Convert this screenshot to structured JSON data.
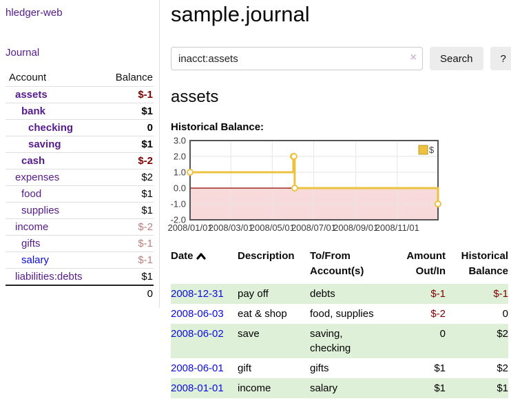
{
  "colors": {
    "link_purple": "#551a8b",
    "link_blue": "#0b0bdc",
    "negative_red": "#800000",
    "muted_negative_rose": "#bc7e7e",
    "row_stripe_green": "#dff0d8",
    "chart_line_gold": "#edc240",
    "chart_negative_fill": "#f9dada",
    "chart_zero_line": "#8b0000",
    "button_gray": "#ececec"
  },
  "sidebar": {
    "app_title": "hledger-web",
    "journal_label": "Journal",
    "accounts_header": {
      "account": "Account",
      "balance": "Balance"
    },
    "accounts": [
      {
        "name": "assets",
        "balance": "$-1"
      },
      {
        "name": "bank",
        "balance": "$1"
      },
      {
        "name": "checking",
        "balance": "0"
      },
      {
        "name": "saving",
        "balance": "$1"
      },
      {
        "name": "cash",
        "balance": "$-2"
      },
      {
        "name": "expenses",
        "balance": "$2"
      },
      {
        "name": "food",
        "balance": "$1"
      },
      {
        "name": "supplies",
        "balance": "$1"
      },
      {
        "name": "income",
        "balance": "$-2"
      },
      {
        "name": "gifts",
        "balance": "$-1"
      },
      {
        "name": "salary",
        "balance": "$-1"
      },
      {
        "name": "liabilities:debts",
        "balance": "$1"
      }
    ],
    "total": "0"
  },
  "main": {
    "title": "sample.journal",
    "search": {
      "value": "inacct:assets",
      "clear_icon": "×",
      "button": "Search",
      "help_button": "?"
    },
    "account_heading": "assets",
    "chart_label": "Historical Balance:"
  },
  "chart_data": {
    "type": "line",
    "title": "Historical Balance",
    "series": [
      {
        "name": "$",
        "color": "#edc240",
        "style": "steps",
        "points_day_value": [
          [
            0,
            1
          ],
          [
            152,
            2
          ],
          [
            153,
            2
          ],
          [
            154,
            0
          ],
          [
            365,
            -1
          ]
        ],
        "points_date_value": [
          [
            "2008-01-01",
            1
          ],
          [
            "2008-06-01",
            2
          ],
          [
            "2008-06-02",
            2
          ],
          [
            "2008-06-03",
            0
          ],
          [
            "2008-12-31",
            -1
          ]
        ]
      }
    ],
    "x_ticks": [
      {
        "label": "2008/01/01",
        "day": 0
      },
      {
        "label": "2008/03/01",
        "day": 60
      },
      {
        "label": "2008/05/01",
        "day": 121
      },
      {
        "label": "2008/07/01",
        "day": 182
      },
      {
        "label": "2008/09/01",
        "day": 244
      },
      {
        "label": "2008/11/01",
        "day": 305
      }
    ],
    "x_range_days": [
      0,
      365
    ],
    "y_ticks": [
      "3.0",
      "2.0",
      "1.0",
      "0.0",
      "-1.0",
      "-2.0"
    ],
    "ylim": [
      -2,
      3
    ],
    "legend": {
      "label": "$",
      "position": "top-right"
    },
    "grid": true,
    "negative_region_fill": "#f9dada",
    "zero_line_color": "#8b0000"
  },
  "register": {
    "headers": {
      "date": "Date",
      "description": "Description",
      "accounts": "To/From Account(s)",
      "amount": "Amount Out/In",
      "balance": "Historical Balance"
    },
    "rows": [
      {
        "date": "2008-12-31",
        "description": "pay off",
        "accounts": "debts",
        "amount": "$-1",
        "balance": "$-1"
      },
      {
        "date": "2008-06-03",
        "description": "eat & shop",
        "accounts": "food, supplies",
        "amount": "$-2",
        "balance": "0"
      },
      {
        "date": "2008-06-02",
        "description": "save",
        "accounts": "saving, checking",
        "amount": "0",
        "balance": "$2"
      },
      {
        "date": "2008-06-01",
        "description": "gift",
        "accounts": "gifts",
        "amount": "$1",
        "balance": "$2"
      },
      {
        "date": "2008-01-01",
        "description": "income",
        "accounts": "salary",
        "amount": "$1",
        "balance": "$1"
      }
    ]
  }
}
